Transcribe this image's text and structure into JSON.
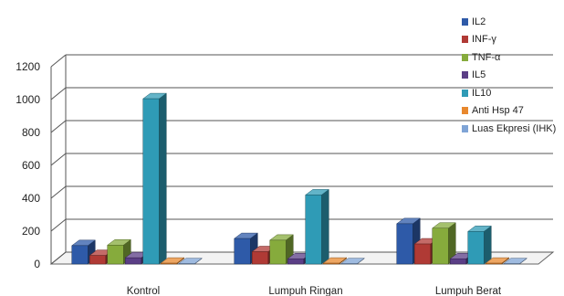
{
  "chart_data": {
    "type": "bar",
    "categories": [
      "Kontrol",
      "Lumpuh Ringan",
      "Lumpuh Berat"
    ],
    "series": [
      {
        "name": "IL2",
        "color": "#2e5aa8",
        "values": [
          112,
          155,
          245
        ]
      },
      {
        "name": "INF-γ",
        "color": "#b03a35",
        "values": [
          52,
          75,
          122
        ]
      },
      {
        "name": "TNF-α",
        "color": "#86ab3c",
        "values": [
          115,
          145,
          218
        ]
      },
      {
        "name": "IL5",
        "color": "#5b3e86",
        "values": [
          38,
          32,
          32
        ]
      },
      {
        "name": "IL10",
        "color": "#2f9bb6",
        "values": [
          1005,
          420,
          198
        ]
      },
      {
        "name": "Anti Hsp 47",
        "color": "#e8882e",
        "values": [
          5,
          5,
          5
        ]
      },
      {
        "name": "Luas Ekpresi (IHK)",
        "color": "#7fa4d6",
        "values": [
          2,
          2,
          2
        ]
      }
    ],
    "yticks": [
      0,
      200,
      400,
      600,
      800,
      1000,
      1200
    ],
    "ylim": [
      0,
      1200
    ],
    "grid": true,
    "legend": "right",
    "title": "",
    "xlabel": "",
    "ylabel": ""
  }
}
